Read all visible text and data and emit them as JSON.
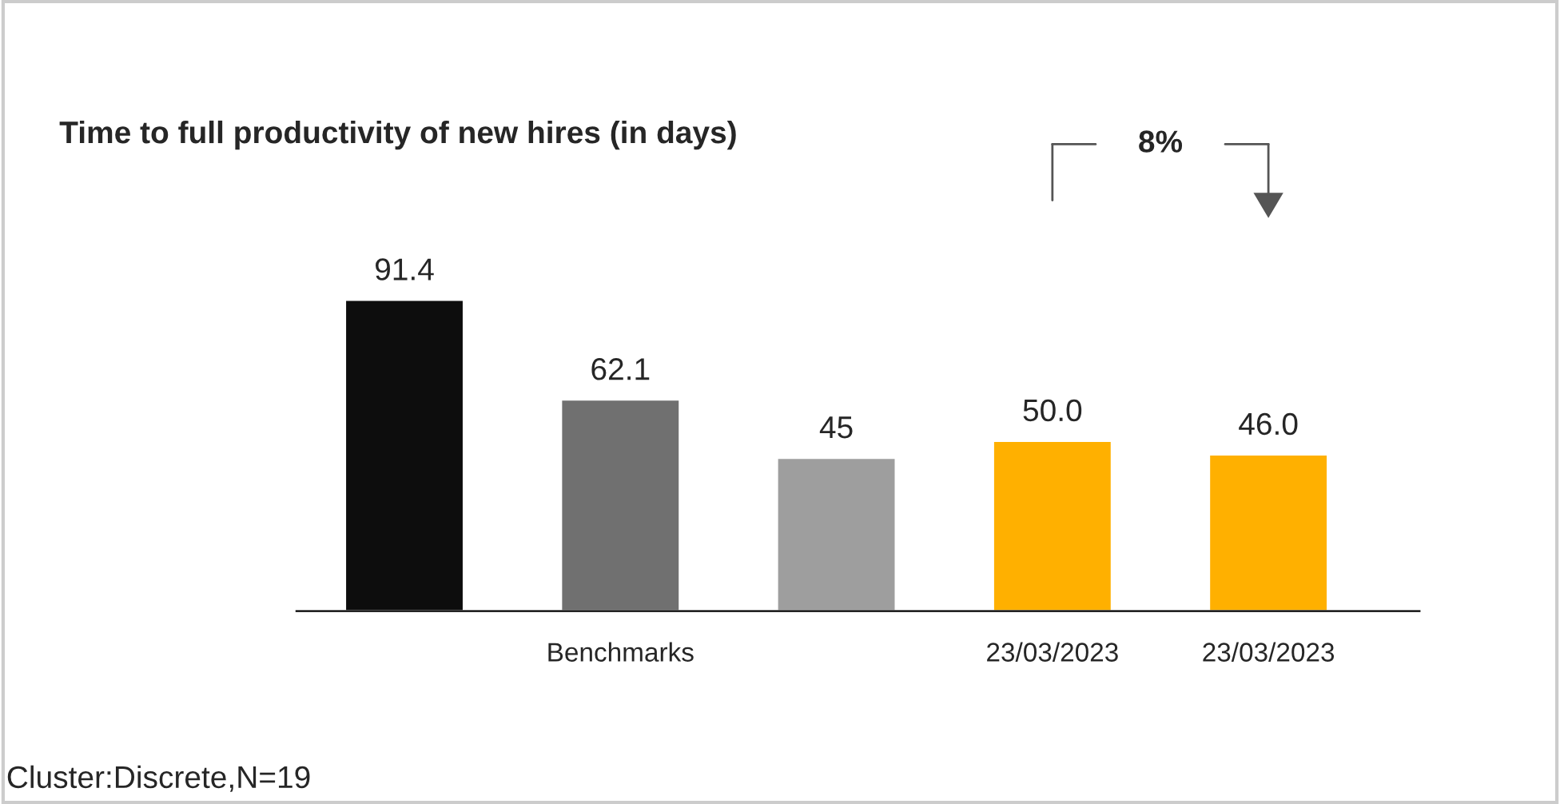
{
  "chart_data": {
    "type": "bar",
    "title": "Time to full productivity of new hires (in days)",
    "categories": [
      null,
      "Benchmarks",
      null,
      "23/03/2023",
      "23/03/2023"
    ],
    "values": [
      91.4,
      62.1,
      45,
      50.0,
      46.0
    ],
    "colors": [
      "#0d0d0d",
      "#707070",
      "#9e9e9e",
      "#ffb000",
      "#ffb000"
    ],
    "value_labels": [
      "91.4",
      "62.1",
      "45",
      "50.0",
      "46.0"
    ],
    "annotations": [
      "8%",
      "Cluster:Discrete,N=19"
    ],
    "grid": false,
    "legend": false
  }
}
